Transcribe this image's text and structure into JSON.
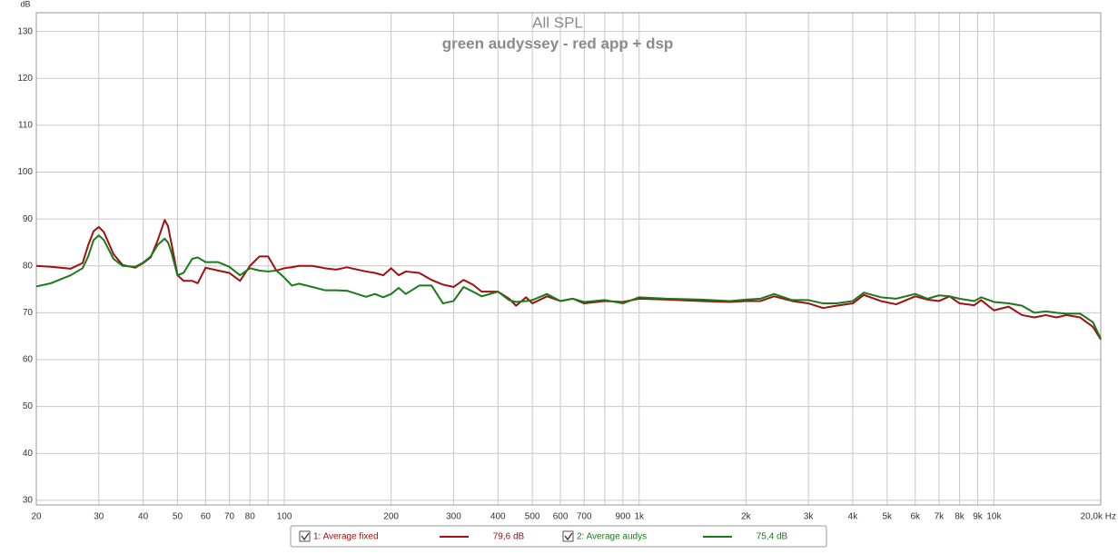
{
  "chart_data": {
    "type": "line",
    "title": "All SPL",
    "subtitle": "green audyssey  - red app + dsp",
    "y_label": "dB",
    "log_x": true,
    "grid": true,
    "x": [
      20,
      22,
      25,
      27,
      28,
      29,
      30,
      31,
      33,
      35,
      38,
      40,
      42,
      44,
      46,
      47,
      48,
      50,
      52,
      55,
      57,
      60,
      65,
      70,
      75,
      80,
      85,
      90,
      95,
      100,
      105,
      110,
      120,
      130,
      140,
      150,
      170,
      180,
      190,
      200,
      210,
      220,
      240,
      260,
      280,
      300,
      320,
      340,
      360,
      400,
      430,
      450,
      480,
      500,
      550,
      600,
      650,
      700,
      800,
      900,
      1000,
      1200,
      1500,
      1800,
      2000,
      2200,
      2400,
      2700,
      3000,
      3300,
      3600,
      4000,
      4300,
      4800,
      5300,
      6000,
      6500,
      7000,
      7500,
      8000,
      8800,
      9200,
      10000,
      11000,
      12000,
      13000,
      14000,
      15000,
      16000,
      17500,
      19000,
      20000
    ],
    "series": [
      {
        "name": "1: Average fixed",
        "color": "#a01010",
        "level": "79,6 dB",
        "values": [
          80,
          79.8,
          79.4,
          80.6,
          84.4,
          87.4,
          88.3,
          87.2,
          82.5,
          80.2,
          79.6,
          80.6,
          81.8,
          85.5,
          89.8,
          88.5,
          85,
          78,
          76.8,
          76.8,
          76.3,
          79.6,
          79,
          78.5,
          76.8,
          80,
          82,
          82,
          79,
          79.5,
          79.7,
          80,
          80,
          79.5,
          79.2,
          79.7,
          78.8,
          78.5,
          78,
          79.5,
          78,
          78.8,
          78.5,
          77,
          76,
          75.5,
          77,
          76,
          74.5,
          74.5,
          73,
          71.5,
          73.3,
          72,
          73.5,
          72.5,
          73,
          72,
          72.5,
          72.3,
          73,
          72.8,
          72.5,
          72.3,
          72.5,
          72.5,
          73.5,
          72.5,
          72,
          71,
          71.5,
          72,
          73.8,
          72.5,
          71.8,
          73.5,
          72.8,
          72.5,
          73.5,
          72,
          71.6,
          72.7,
          70.5,
          71.3,
          69.5,
          69,
          69.5,
          69,
          69.5,
          69,
          67,
          64.3
        ]
      },
      {
        "name": "2: Average audys",
        "color": "#1a7a1a",
        "level": "75,4 dB",
        "values": [
          75.6,
          76.3,
          78,
          79.5,
          82,
          85.5,
          86.5,
          85.5,
          81.5,
          80,
          79.8,
          80.7,
          82,
          84.5,
          85.8,
          85,
          83,
          78,
          78.5,
          81.5,
          81.8,
          80.8,
          80.8,
          79.8,
          78,
          79.5,
          79,
          78.8,
          79,
          77.5,
          75.8,
          76.2,
          75.5,
          74.8,
          74.8,
          74.7,
          73.4,
          74,
          73.3,
          74,
          75.3,
          74,
          75.8,
          75.8,
          72,
          72.5,
          75.5,
          74.5,
          73.5,
          74.5,
          72.7,
          72.3,
          72.5,
          72.7,
          74,
          72.5,
          73,
          72.3,
          72.7,
          72,
          73.3,
          73,
          72.8,
          72.5,
          72.8,
          73,
          74,
          72.7,
          72.7,
          72,
          72,
          72.5,
          74.3,
          73.3,
          73,
          74,
          73,
          73.7,
          73.5,
          73,
          72.5,
          73.3,
          72.3,
          72,
          71.5,
          70,
          70.3,
          70,
          69.8,
          69.8,
          68,
          64.5
        ]
      }
    ],
    "xlim": [
      20,
      20000
    ],
    "ylim": [
      29,
      134
    ],
    "yticks": [
      30,
      40,
      50,
      60,
      70,
      80,
      90,
      100,
      110,
      120,
      130
    ],
    "xticks": [
      20,
      30,
      40,
      50,
      60,
      70,
      80,
      {
        "value": 90,
        "label": null
      },
      100,
      200,
      300,
      400,
      500,
      600,
      700,
      {
        "value": 800,
        "label": null
      },
      900,
      {
        "value": 1000,
        "label": "1k"
      },
      {
        "value": 2000,
        "label": "2k"
      },
      {
        "value": 3000,
        "label": "3k"
      },
      {
        "value": 4000,
        "label": "4k"
      },
      {
        "value": 5000,
        "label": "5k"
      },
      {
        "value": 6000,
        "label": "6k"
      },
      {
        "value": 7000,
        "label": "7k"
      },
      {
        "value": 8000,
        "label": "8k"
      },
      {
        "value": 9000,
        "label": "9k"
      },
      {
        "value": 10000,
        "label": "10k"
      },
      {
        "value": 20000,
        "label": "20,0k Hz"
      }
    ]
  }
}
